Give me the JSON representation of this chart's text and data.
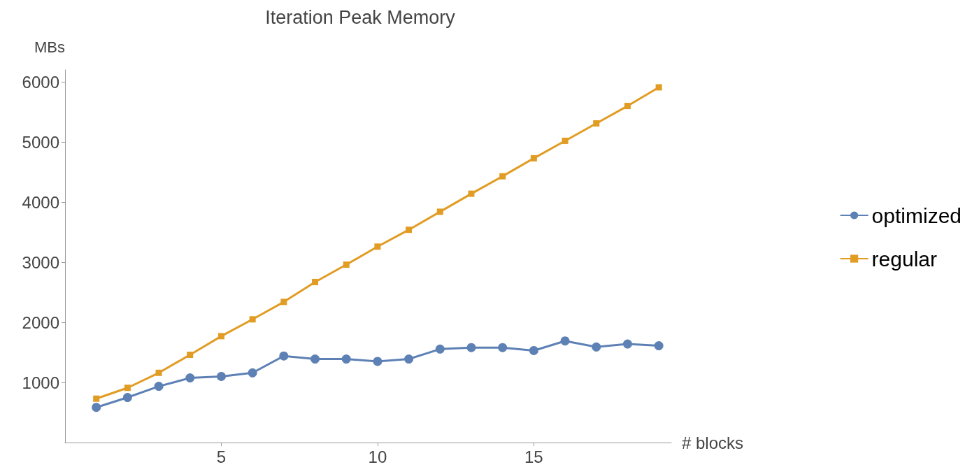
{
  "chart_data": {
    "type": "line",
    "title": "Iteration Peak Memory",
    "xlabel": "# blocks",
    "ylabel": "MBs",
    "x": [
      1,
      2,
      3,
      4,
      5,
      6,
      7,
      8,
      9,
      10,
      11,
      12,
      13,
      14,
      15,
      16,
      17,
      18,
      19
    ],
    "series": [
      {
        "name": "optimized",
        "color": "#5e81b5",
        "marker": "circle",
        "values": [
          585,
          750,
          935,
          1075,
          1100,
          1160,
          1440,
          1390,
          1390,
          1350,
          1390,
          1555,
          1580,
          1580,
          1530,
          1690,
          1590,
          1640,
          1610
        ]
      },
      {
        "name": "regular",
        "color": "#e19c24",
        "marker": "square",
        "values": [
          730,
          910,
          1160,
          1460,
          1770,
          2050,
          2340,
          2670,
          2960,
          3260,
          3540,
          3840,
          4140,
          4430,
          4730,
          5020,
          5310,
          5600,
          5910
        ]
      }
    ],
    "xlim": [
      0,
      19.4
    ],
    "xticks": [
      5,
      10,
      15
    ],
    "ylim": [
      0,
      6200
    ],
    "yticks": [
      1000,
      2000,
      3000,
      4000,
      5000,
      6000
    ],
    "grid": false,
    "legend": "right"
  }
}
